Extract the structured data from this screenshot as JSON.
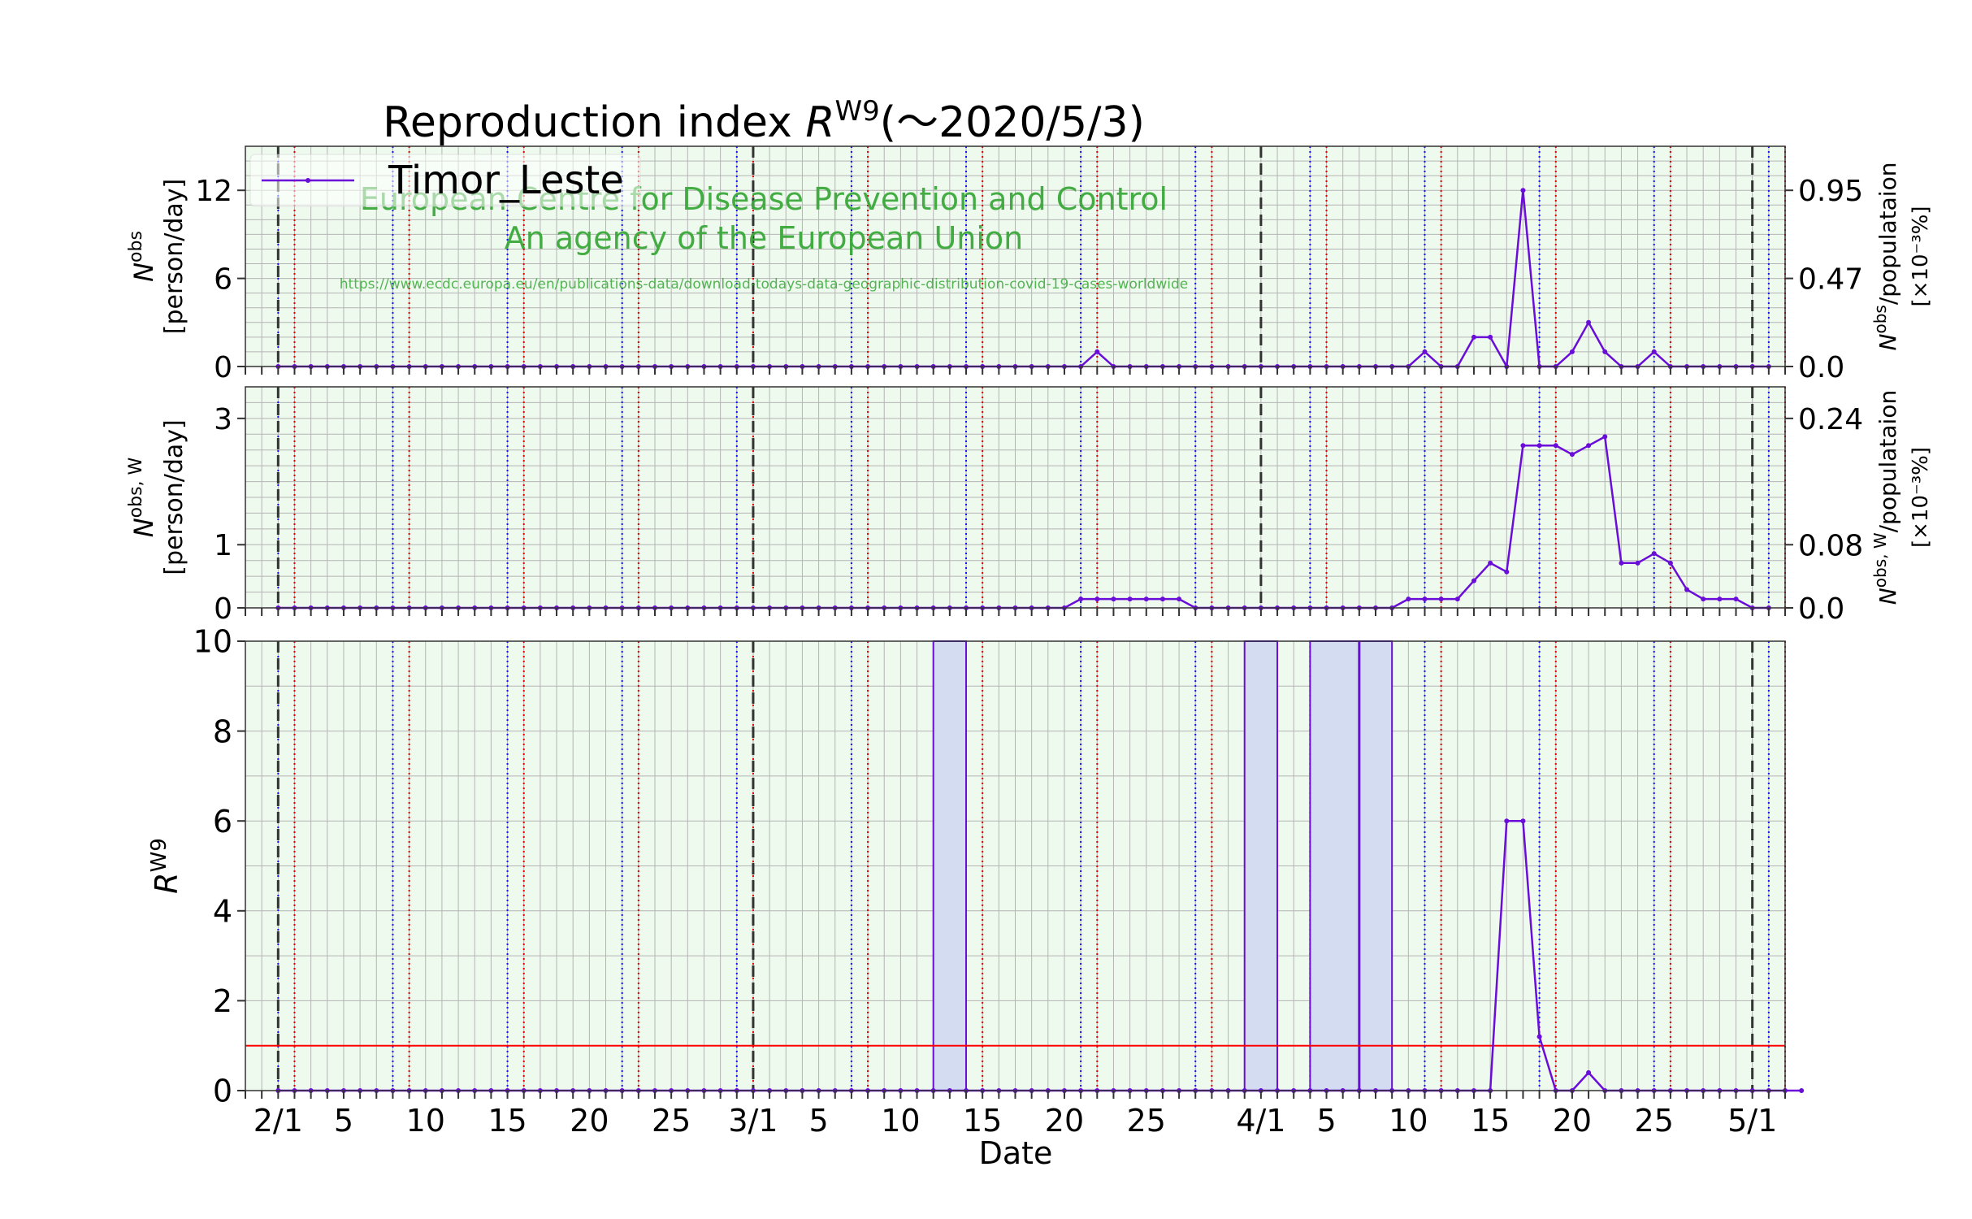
{
  "title_parts": {
    "prefix": "Reproduction index ",
    "symbol": "R",
    "superscript": "W9",
    "suffix": "(〜2020/5/3)"
  },
  "legend": {
    "label": "Timor_Leste",
    "color": "#6a0dd8",
    "placement": "upper-left"
  },
  "watermark": {
    "line1": "European Centre for Disease Prevention and Control",
    "line2": "An agency of the European Union",
    "url": "https://www.ecdc.europa.eu/en/publications-data/download-todays-data-geographic-distribution-covid-19-cases-worldwide",
    "color": "#3aa83a"
  },
  "xaxis": {
    "label": "Date",
    "start": "2020-01-30",
    "end": "2020-05-03",
    "tick_labels": [
      "2/1",
      "5",
      "10",
      "15",
      "20",
      "25",
      "3/1",
      "5",
      "10",
      "15",
      "20",
      "25",
      "4/1",
      "5",
      "10",
      "15",
      "20",
      "25",
      "5/1"
    ],
    "tick_dates": [
      "2020-02-01",
      "2020-02-05",
      "2020-02-10",
      "2020-02-15",
      "2020-02-20",
      "2020-02-25",
      "2020-03-01",
      "2020-03-05",
      "2020-03-10",
      "2020-03-15",
      "2020-03-20",
      "2020-03-25",
      "2020-04-01",
      "2020-04-05",
      "2020-04-10",
      "2020-04-15",
      "2020-04-20",
      "2020-04-25",
      "2020-05-01"
    ]
  },
  "colors": {
    "line": "#6a0dd8",
    "background": "#eefaee",
    "span": "#d4dcf2",
    "threshold": "#ff0000",
    "weekend_saturday": "#1010ff",
    "weekend_sunday": "#e00000",
    "month_boundary": "#333333"
  },
  "chart_data": [
    {
      "type": "line",
      "name": "daily_cases",
      "ylabel_main": "N",
      "ylabel_sup": "obs",
      "ylabel_unit": "[person/day]",
      "ylim": [
        0,
        15
      ],
      "yticks": [
        0,
        6,
        12
      ],
      "y2_label_main": "N",
      "y2_label_sup": "obs",
      "y2_label_rest": "/populataion",
      "y2_label_unit": "[×10⁻³%]",
      "y2_ticks": [
        {
          "value": 0,
          "label": "0.0"
        },
        {
          "value": 6,
          "label": "0.47"
        },
        {
          "value": 12,
          "label": "0.95"
        }
      ],
      "x_start": "2020-02-01",
      "values": [
        0,
        0,
        0,
        0,
        0,
        0,
        0,
        0,
        0,
        0,
        0,
        0,
        0,
        0,
        0,
        0,
        0,
        0,
        0,
        0,
        0,
        0,
        0,
        0,
        0,
        0,
        0,
        0,
        0,
        0,
        0,
        0,
        0,
        0,
        0,
        0,
        0,
        0,
        0,
        0,
        0,
        0,
        0,
        0,
        0,
        0,
        0,
        0,
        0,
        0,
        1,
        0,
        0,
        0,
        0,
        0,
        0,
        0,
        0,
        0,
        0,
        0,
        0,
        0,
        0,
        0,
        0,
        0,
        0,
        0,
        1,
        0,
        0,
        2,
        2,
        0,
        12,
        0,
        0,
        1,
        3,
        1,
        0,
        0,
        1,
        0,
        0,
        0,
        0,
        0,
        0,
        0
      ]
    },
    {
      "type": "line",
      "name": "weekly_average",
      "ylabel_main": "N",
      "ylabel_sup": "obs, W",
      "ylabel_unit": "[person/day]",
      "ylim": [
        0,
        3.5
      ],
      "yticks": [
        0,
        1,
        3
      ],
      "y2_label_main": "N",
      "y2_label_sup": "obs, W",
      "y2_label_rest": "/populataion",
      "y2_label_unit": "[×10⁻³%]",
      "y2_ticks": [
        {
          "value": 0,
          "label": "0.0"
        },
        {
          "value": 1,
          "label": "0.08"
        },
        {
          "value": 3,
          "label": "0.24"
        }
      ],
      "x_start": "2020-02-01",
      "values": [
        0,
        0,
        0,
        0,
        0,
        0,
        0,
        0,
        0,
        0,
        0,
        0,
        0,
        0,
        0,
        0,
        0,
        0,
        0,
        0,
        0,
        0,
        0,
        0,
        0,
        0,
        0,
        0,
        0,
        0,
        0,
        0,
        0,
        0,
        0,
        0,
        0,
        0,
        0,
        0,
        0,
        0,
        0,
        0,
        0,
        0,
        0,
        0,
        0,
        0.14,
        0.14,
        0.14,
        0.14,
        0.14,
        0.14,
        0.14,
        0,
        0,
        0,
        0,
        0,
        0,
        0,
        0,
        0,
        0,
        0,
        0,
        0,
        0.14,
        0.14,
        0.14,
        0.14,
        0.43,
        0.71,
        0.57,
        2.57,
        2.57,
        2.57,
        2.43,
        2.57,
        2.71,
        0.71,
        0.71,
        0.86,
        0.71,
        0.29,
        0.14,
        0.14,
        0.14,
        0,
        0
      ]
    },
    {
      "type": "line",
      "name": "reproduction_index",
      "ylabel_main": "R",
      "ylabel_sup": "W9",
      "ylim": [
        0,
        10
      ],
      "yticks": [
        0,
        2,
        4,
        6,
        8,
        10
      ],
      "threshold": 1,
      "x_start": "2020-02-01",
      "values": [
        0,
        0,
        0,
        0,
        0,
        0,
        0,
        0,
        0,
        0,
        0,
        0,
        0,
        0,
        0,
        0,
        0,
        0,
        0,
        0,
        0,
        0,
        0,
        0,
        0,
        0,
        0,
        0,
        0,
        0,
        0,
        0,
        0,
        0,
        0,
        0,
        0,
        0,
        0,
        0,
        0,
        0,
        0,
        0,
        0,
        0,
        0,
        0,
        0,
        0,
        0,
        0,
        0,
        0,
        0,
        0,
        0,
        0,
        0,
        0,
        0,
        0,
        0,
        0,
        0,
        0,
        0,
        0,
        0,
        0,
        0,
        0,
        0,
        0,
        0,
        6,
        6,
        1.2,
        0,
        0,
        0.4,
        0,
        0,
        0,
        0,
        0,
        0,
        0,
        0,
        0,
        0,
        0,
        0,
        0
      ],
      "spans": [
        {
          "from": "2020-03-12",
          "to": "2020-03-14"
        },
        {
          "from": "2020-03-31",
          "to": "2020-04-02"
        },
        {
          "from": "2020-04-04",
          "to": "2020-04-09"
        }
      ],
      "span_verticals": [
        "2020-04-07"
      ]
    }
  ]
}
